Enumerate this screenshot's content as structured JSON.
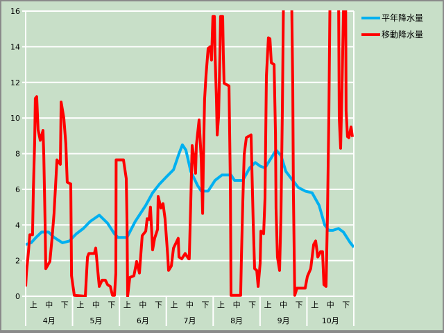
{
  "chart_data": {
    "type": "line",
    "title": "",
    "xlabel": "",
    "ylabel": "",
    "ylim": [
      0,
      16
    ],
    "yticks": [
      0,
      2,
      4,
      6,
      8,
      10,
      12,
      14,
      16
    ],
    "grid": true,
    "legend_position": "top-right",
    "x_unit": "day of season (starting April 1)",
    "xlim": [
      0,
      214
    ],
    "dekad_labels": [
      "上",
      "中",
      "下"
    ],
    "months": [
      "4月",
      "5月",
      "6月",
      "7月",
      "8月",
      "9月",
      "10月"
    ],
    "series": [
      {
        "name": "平年降水量",
        "color": "#00b0f0",
        "points": [
          [
            0,
            2.9
          ],
          [
            3.6,
            3.0
          ],
          [
            6.8,
            3.3
          ],
          [
            10.4,
            3.6
          ],
          [
            14.9,
            3.6
          ],
          [
            18.5,
            3.3
          ],
          [
            24.0,
            3.0
          ],
          [
            28.5,
            3.1
          ],
          [
            33.0,
            3.5
          ],
          [
            37.6,
            3.8
          ],
          [
            42.1,
            4.2
          ],
          [
            48.0,
            4.55
          ],
          [
            53.4,
            4.1
          ],
          [
            57.9,
            3.5
          ],
          [
            60.2,
            3.3
          ],
          [
            66.1,
            3.3
          ],
          [
            71.5,
            4.2
          ],
          [
            78.3,
            5.1
          ],
          [
            82.8,
            5.8
          ],
          [
            87.3,
            6.3
          ],
          [
            91.8,
            6.7
          ],
          [
            96.4,
            7.1
          ],
          [
            100.0,
            8.0
          ],
          [
            102.2,
            8.5
          ],
          [
            104.5,
            8.2
          ],
          [
            107.7,
            7.0
          ],
          [
            112.2,
            6.2
          ],
          [
            114.5,
            5.9
          ],
          [
            119.0,
            5.9
          ],
          [
            123.5,
            6.5
          ],
          [
            128.0,
            6.8
          ],
          [
            133.9,
            6.8
          ],
          [
            136.2,
            6.5
          ],
          [
            141.6,
            6.5
          ],
          [
            146.1,
            7.2
          ],
          [
            149.7,
            7.5
          ],
          [
            152.9,
            7.3
          ],
          [
            156.1,
            7.2
          ],
          [
            159.7,
            7.7
          ],
          [
            163.3,
            8.2
          ],
          [
            166.5,
            7.9
          ],
          [
            169.7,
            7.0
          ],
          [
            173.3,
            6.6
          ],
          [
            177.8,
            6.1
          ],
          [
            182.3,
            5.9
          ],
          [
            186.8,
            5.8
          ],
          [
            191.4,
            5.1
          ],
          [
            195.0,
            4.0
          ],
          [
            197.7,
            3.7
          ],
          [
            200.4,
            3.7
          ],
          [
            204.0,
            3.8
          ],
          [
            207.2,
            3.6
          ],
          [
            211.7,
            3.0
          ],
          [
            214,
            2.75
          ]
        ]
      },
      {
        "name": "移動降水量",
        "color": "#ff0000",
        "points": [
          [
            0,
            0.55
          ],
          [
            0.5,
            1.3
          ],
          [
            1.8,
            2.5
          ],
          [
            2.7,
            3.45
          ],
          [
            4.5,
            3.45
          ],
          [
            5.0,
            6.0
          ],
          [
            5.9,
            8.7
          ],
          [
            6.3,
            11.1
          ],
          [
            7.2,
            11.2
          ],
          [
            8.1,
            9.35
          ],
          [
            9.5,
            8.75
          ],
          [
            11.3,
            9.3
          ],
          [
            11.8,
            7.95
          ],
          [
            12.7,
            3.9
          ],
          [
            13.1,
            1.55
          ],
          [
            15.8,
            1.95
          ],
          [
            17.2,
            3.25
          ],
          [
            18.5,
            4.65
          ],
          [
            20.4,
            7.65
          ],
          [
            22.6,
            7.4
          ],
          [
            23.1,
            10.9
          ],
          [
            24.9,
            10.0
          ],
          [
            26.2,
            8.55
          ],
          [
            27.1,
            6.4
          ],
          [
            29.4,
            6.3
          ],
          [
            29.9,
            1.15
          ],
          [
            31.7,
            0.05
          ],
          [
            38.9,
            0.0
          ],
          [
            40.3,
            2.2
          ],
          [
            41.2,
            2.4
          ],
          [
            44.8,
            2.4
          ],
          [
            45.7,
            2.7
          ],
          [
            47.0,
            1.45
          ],
          [
            48.0,
            0.55
          ],
          [
            49.8,
            0.9
          ],
          [
            52.0,
            0.9
          ],
          [
            53.4,
            0.65
          ],
          [
            55.2,
            0.55
          ],
          [
            56.6,
            0.05
          ],
          [
            57.9,
            0.05
          ],
          [
            58.8,
            1.3
          ],
          [
            59.0,
            7.65
          ],
          [
            63.8,
            7.65
          ],
          [
            65.6,
            6.6
          ],
          [
            66.1,
            4.15
          ],
          [
            66.5,
            0.0
          ],
          [
            67.9,
            1.05
          ],
          [
            70.6,
            1.15
          ],
          [
            72.4,
            1.95
          ],
          [
            74.2,
            1.3
          ],
          [
            76.0,
            3.4
          ],
          [
            78.3,
            3.65
          ],
          [
            79.2,
            4.35
          ],
          [
            80.5,
            4.3
          ],
          [
            81.4,
            5.0
          ],
          [
            82.8,
            2.6
          ],
          [
            84.1,
            3.25
          ],
          [
            86.0,
            3.75
          ],
          [
            86.4,
            5.6
          ],
          [
            88.2,
            4.95
          ],
          [
            89.6,
            5.2
          ],
          [
            90.9,
            4.35
          ],
          [
            92.7,
            2.2
          ],
          [
            93.2,
            1.45
          ],
          [
            95.0,
            1.7
          ],
          [
            96.4,
            2.7
          ],
          [
            99.5,
            3.25
          ],
          [
            100.0,
            2.2
          ],
          [
            101.8,
            2.1
          ],
          [
            104.0,
            2.4
          ],
          [
            106.3,
            2.1
          ],
          [
            106.7,
            2.1
          ],
          [
            107.7,
            5.3
          ],
          [
            108.6,
            8.45
          ],
          [
            109.9,
            7.65
          ],
          [
            110.8,
            6.9
          ],
          [
            111.3,
            8.45
          ],
          [
            113.1,
            9.9
          ],
          [
            114.5,
            7.65
          ],
          [
            115.4,
            4.65
          ],
          [
            115.8,
            7.15
          ],
          [
            116.7,
            11.05
          ],
          [
            117.6,
            12.35
          ],
          [
            119.0,
            13.9
          ],
          [
            120.3,
            14.0
          ],
          [
            121.2,
            13.25
          ],
          [
            122.1,
            15.7
          ],
          [
            123.1,
            15.7
          ],
          [
            123.5,
            13.6
          ],
          [
            124.4,
            11.05
          ],
          [
            124.9,
            9.05
          ],
          [
            125.8,
            10.1
          ],
          [
            126.7,
            13.6
          ],
          [
            127.1,
            15.7
          ],
          [
            128.5,
            15.7
          ],
          [
            128.9,
            13.6
          ],
          [
            129.4,
            11.95
          ],
          [
            132.6,
            11.8
          ],
          [
            133.5,
            6.1
          ],
          [
            133.9,
            0.05
          ],
          [
            140.2,
            0.05
          ],
          [
            140.7,
            2.2
          ],
          [
            141.6,
            5.3
          ],
          [
            142.5,
            7.95
          ],
          [
            143.9,
            8.9
          ],
          [
            147.0,
            9.05
          ],
          [
            148.4,
            4.15
          ],
          [
            149.3,
            1.55
          ],
          [
            150.7,
            1.45
          ],
          [
            151.6,
            0.55
          ],
          [
            152.9,
            1.85
          ],
          [
            153.4,
            3.65
          ],
          [
            155.2,
            3.5
          ],
          [
            156.1,
            5.5
          ],
          [
            157.0,
            12.35
          ],
          [
            158.3,
            14.5
          ],
          [
            159.3,
            14.45
          ],
          [
            160.2,
            13.1
          ],
          [
            162.0,
            13.0
          ],
          [
            162.9,
            9.1
          ],
          [
            163.3,
            4.95
          ],
          [
            164.2,
            2.2
          ],
          [
            165.6,
            1.45
          ],
          [
            166.5,
            4.55
          ],
          [
            167.4,
            10.4
          ],
          [
            168.3,
            18
          ],
          [
            173.3,
            18
          ],
          [
            174.2,
            11.8
          ],
          [
            174.6,
            5.85
          ],
          [
            175.5,
            0.05
          ],
          [
            176.9,
            0.45
          ],
          [
            182.3,
            0.45
          ],
          [
            183.7,
            1.1
          ],
          [
            185.9,
            1.55
          ],
          [
            187.8,
            2.9
          ],
          [
            189.1,
            3.1
          ],
          [
            190.5,
            2.2
          ],
          [
            192.3,
            2.5
          ],
          [
            193.6,
            2.5
          ],
          [
            194.5,
            0.65
          ],
          [
            195.9,
            0.55
          ],
          [
            196.8,
            4.55
          ],
          [
            197.7,
            10.0
          ],
          [
            198.6,
            18
          ],
          [
            204.0,
            18
          ],
          [
            204.5,
            10.0
          ],
          [
            205.4,
            8.3
          ],
          [
            206.3,
            11.7
          ],
          [
            207.7,
            18
          ],
          [
            208.6,
            18
          ],
          [
            209.0,
            10.4
          ],
          [
            209.9,
            8.95
          ],
          [
            210.8,
            8.9
          ],
          [
            212.2,
            9.5
          ],
          [
            213.1,
            8.95
          ]
        ]
      }
    ]
  }
}
